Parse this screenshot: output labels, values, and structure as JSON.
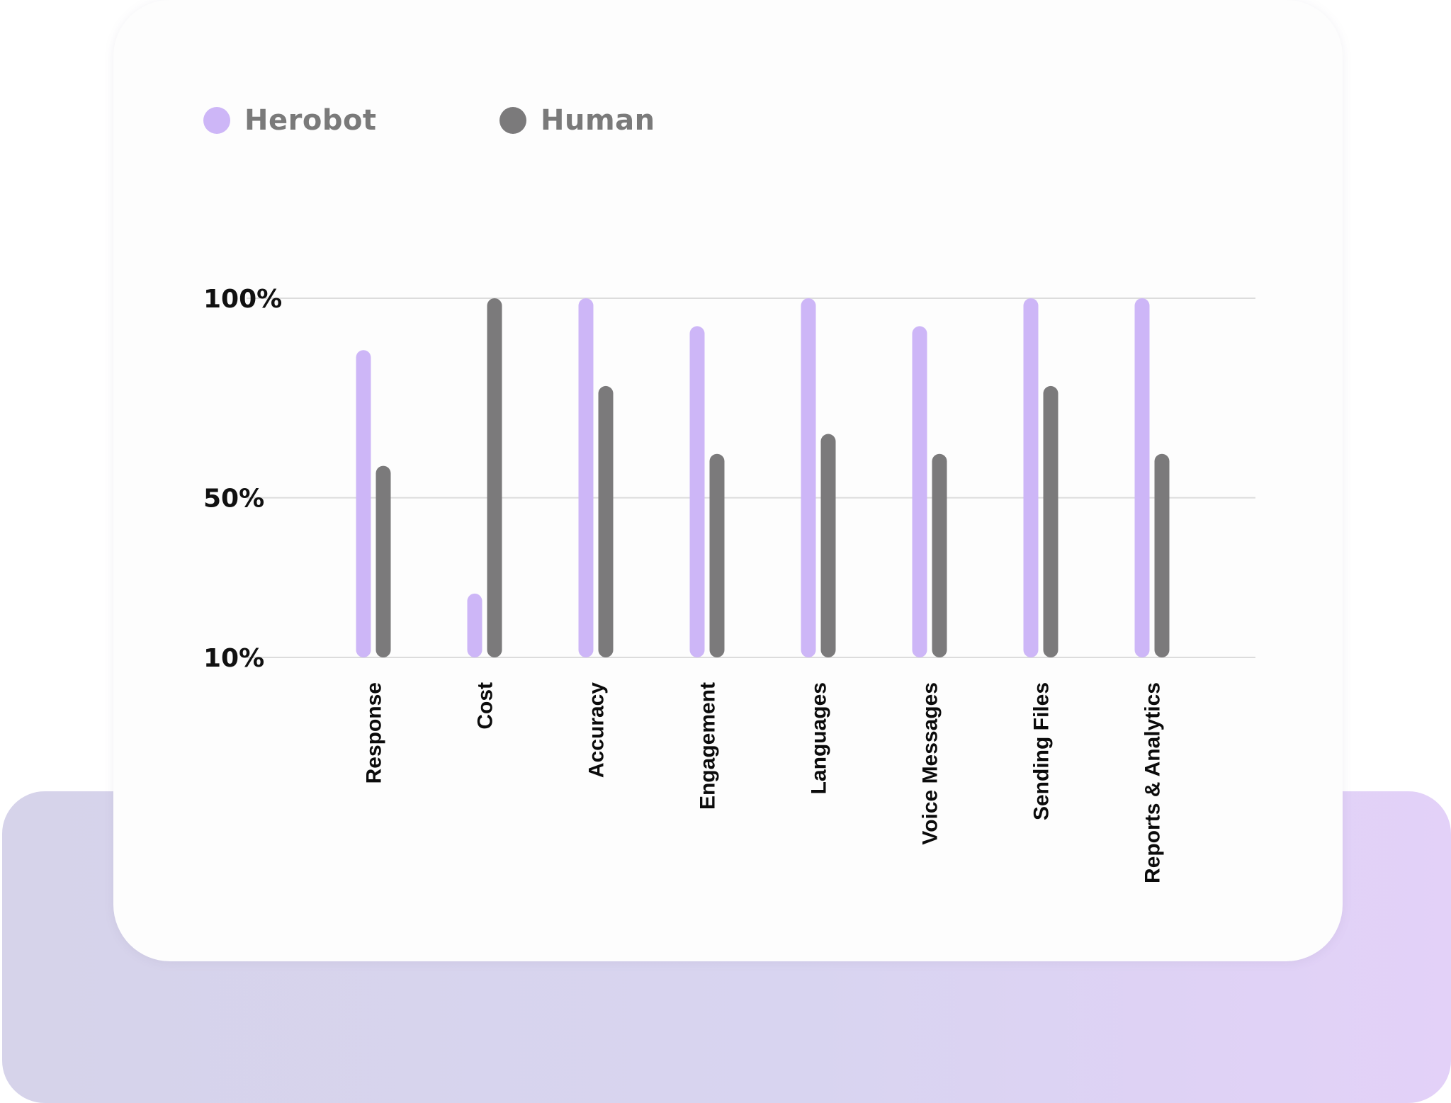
{
  "chart_data": {
    "type": "bar",
    "categories": [
      "Response",
      "Cost",
      "Accuracy",
      "Engagement",
      "Languages",
      "Voice Messages",
      "Sending Files",
      "Reports & Analytics"
    ],
    "series": [
      {
        "name": "Herobot",
        "color": "#cdb6f7",
        "values": [
          87,
          26,
          100,
          93,
          100,
          93,
          100,
          100
        ]
      },
      {
        "name": "Human",
        "color": "#7b7a7b",
        "values": [
          58,
          100,
          78,
          61,
          66,
          61,
          78,
          61
        ]
      }
    ],
    "yticks": [
      "100%",
      "50%",
      "10%"
    ],
    "ytick_values": [
      100,
      50,
      10
    ],
    "ylim": [
      10,
      100
    ],
    "grid": true,
    "legend_position": "top-left",
    "gridline_color": "#dcdcdc"
  }
}
